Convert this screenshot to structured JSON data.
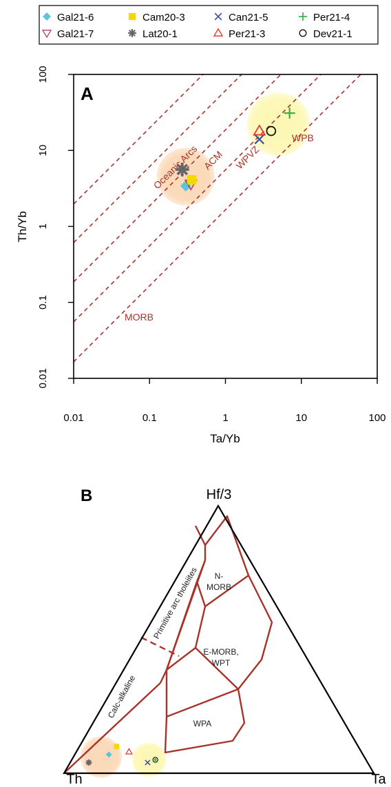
{
  "legend": {
    "placement": "top",
    "items": [
      {
        "label": "Gal21-6",
        "marker": "diamond-filled",
        "color": "#5bc4dc"
      },
      {
        "label": "Cam20-3",
        "marker": "square-filled",
        "color": "#f5d800"
      },
      {
        "label": "Can21-5",
        "marker": "x",
        "color": "#3a4fa0"
      },
      {
        "label": "Per21-4",
        "marker": "plus",
        "color": "#3cb044"
      },
      {
        "label": "Gal21-7",
        "marker": "triangle-down",
        "color": "#b0457d"
      },
      {
        "label": "Lat20-1",
        "marker": "asterisk",
        "color": "#666666"
      },
      {
        "label": "Per21-3",
        "marker": "triangle-up",
        "color": "#e8312a"
      },
      {
        "label": "Dev21-1",
        "marker": "circle",
        "color": "#111111"
      }
    ]
  },
  "chart_data": [
    {
      "type": "scatter",
      "panel_label": "A",
      "xlabel": "Ta/Yb",
      "ylabel": "Th/Yb",
      "xscale": "log",
      "yscale": "log",
      "xlim": [
        0.01,
        100
      ],
      "ylim": [
        0.01,
        100
      ],
      "xticks": [
        "0.01",
        "0.1",
        "1",
        "10",
        "100"
      ],
      "yticks": [
        "0.01",
        "0.1",
        "1",
        "10",
        "100"
      ],
      "guide_line_color": "#a83228",
      "fields": [
        "Oceanic Arcs",
        "ACM",
        "WPVZ",
        "WPB",
        "MORB"
      ],
      "highlight_zones": [
        {
          "center": [
            0.3,
            4.5
          ],
          "color": "#fbd9b8"
        },
        {
          "center": [
            5.0,
            22.0
          ],
          "color": "#fdf7b5"
        }
      ],
      "points": [
        {
          "sample": "Gal21-6",
          "x": 0.3,
          "y": 3.4
        },
        {
          "sample": "Gal21-7",
          "x": 0.35,
          "y": 3.6
        },
        {
          "sample": "Cam20-3",
          "x": 0.36,
          "y": 4.1
        },
        {
          "sample": "Lat20-1",
          "x": 0.27,
          "y": 5.6
        },
        {
          "sample": "Can21-5",
          "x": 2.8,
          "y": 14.0
        },
        {
          "sample": "Per21-3",
          "x": 2.8,
          "y": 18.0
        },
        {
          "sample": "Dev21-1",
          "x": 4.0,
          "y": 18.0
        },
        {
          "sample": "Per21-4",
          "x": 7.0,
          "y": 31.0
        }
      ]
    },
    {
      "type": "ternary",
      "panel_label": "B",
      "apices": {
        "top": "Hf/3",
        "left": "Th",
        "right": "Ta"
      },
      "field_line_color": "#a83228",
      "fields": [
        "N-\nMORB",
        "E-MORB,\nWPT",
        "WPA",
        "Primitive arc tholeiites",
        "Calc-alkaline"
      ],
      "highlight_zones": [
        {
          "composition": {
            "Th": 0.85,
            "HfOver3": 0.06,
            "Ta": 0.09
          },
          "color": "#fbd9b8"
        },
        {
          "composition": {
            "Th": 0.7,
            "HfOver3": 0.05,
            "Ta": 0.25
          },
          "color": "#fdf7b5"
        }
      ],
      "points": [
        {
          "sample": "Lat20-1",
          "composition": {
            "Th": 0.9,
            "HfOver3": 0.04,
            "Ta": 0.06
          }
        },
        {
          "sample": "Gal21-6",
          "composition": {
            "Th": 0.82,
            "HfOver3": 0.07,
            "Ta": 0.11
          }
        },
        {
          "sample": "Cam20-3",
          "composition": {
            "Th": 0.78,
            "HfOver3": 0.1,
            "Ta": 0.12
          }
        },
        {
          "sample": "Per21-3",
          "composition": {
            "Th": 0.75,
            "HfOver3": 0.08,
            "Ta": 0.17
          }
        },
        {
          "sample": "Can21-5",
          "composition": {
            "Th": 0.71,
            "HfOver3": 0.04,
            "Ta": 0.25
          }
        },
        {
          "sample": "Dev21-1",
          "composition": {
            "Th": 0.68,
            "HfOver3": 0.05,
            "Ta": 0.27
          }
        },
        {
          "sample": "Per21-4",
          "composition": {
            "Th": 0.68,
            "HfOver3": 0.05,
            "Ta": 0.27
          }
        }
      ]
    }
  ]
}
